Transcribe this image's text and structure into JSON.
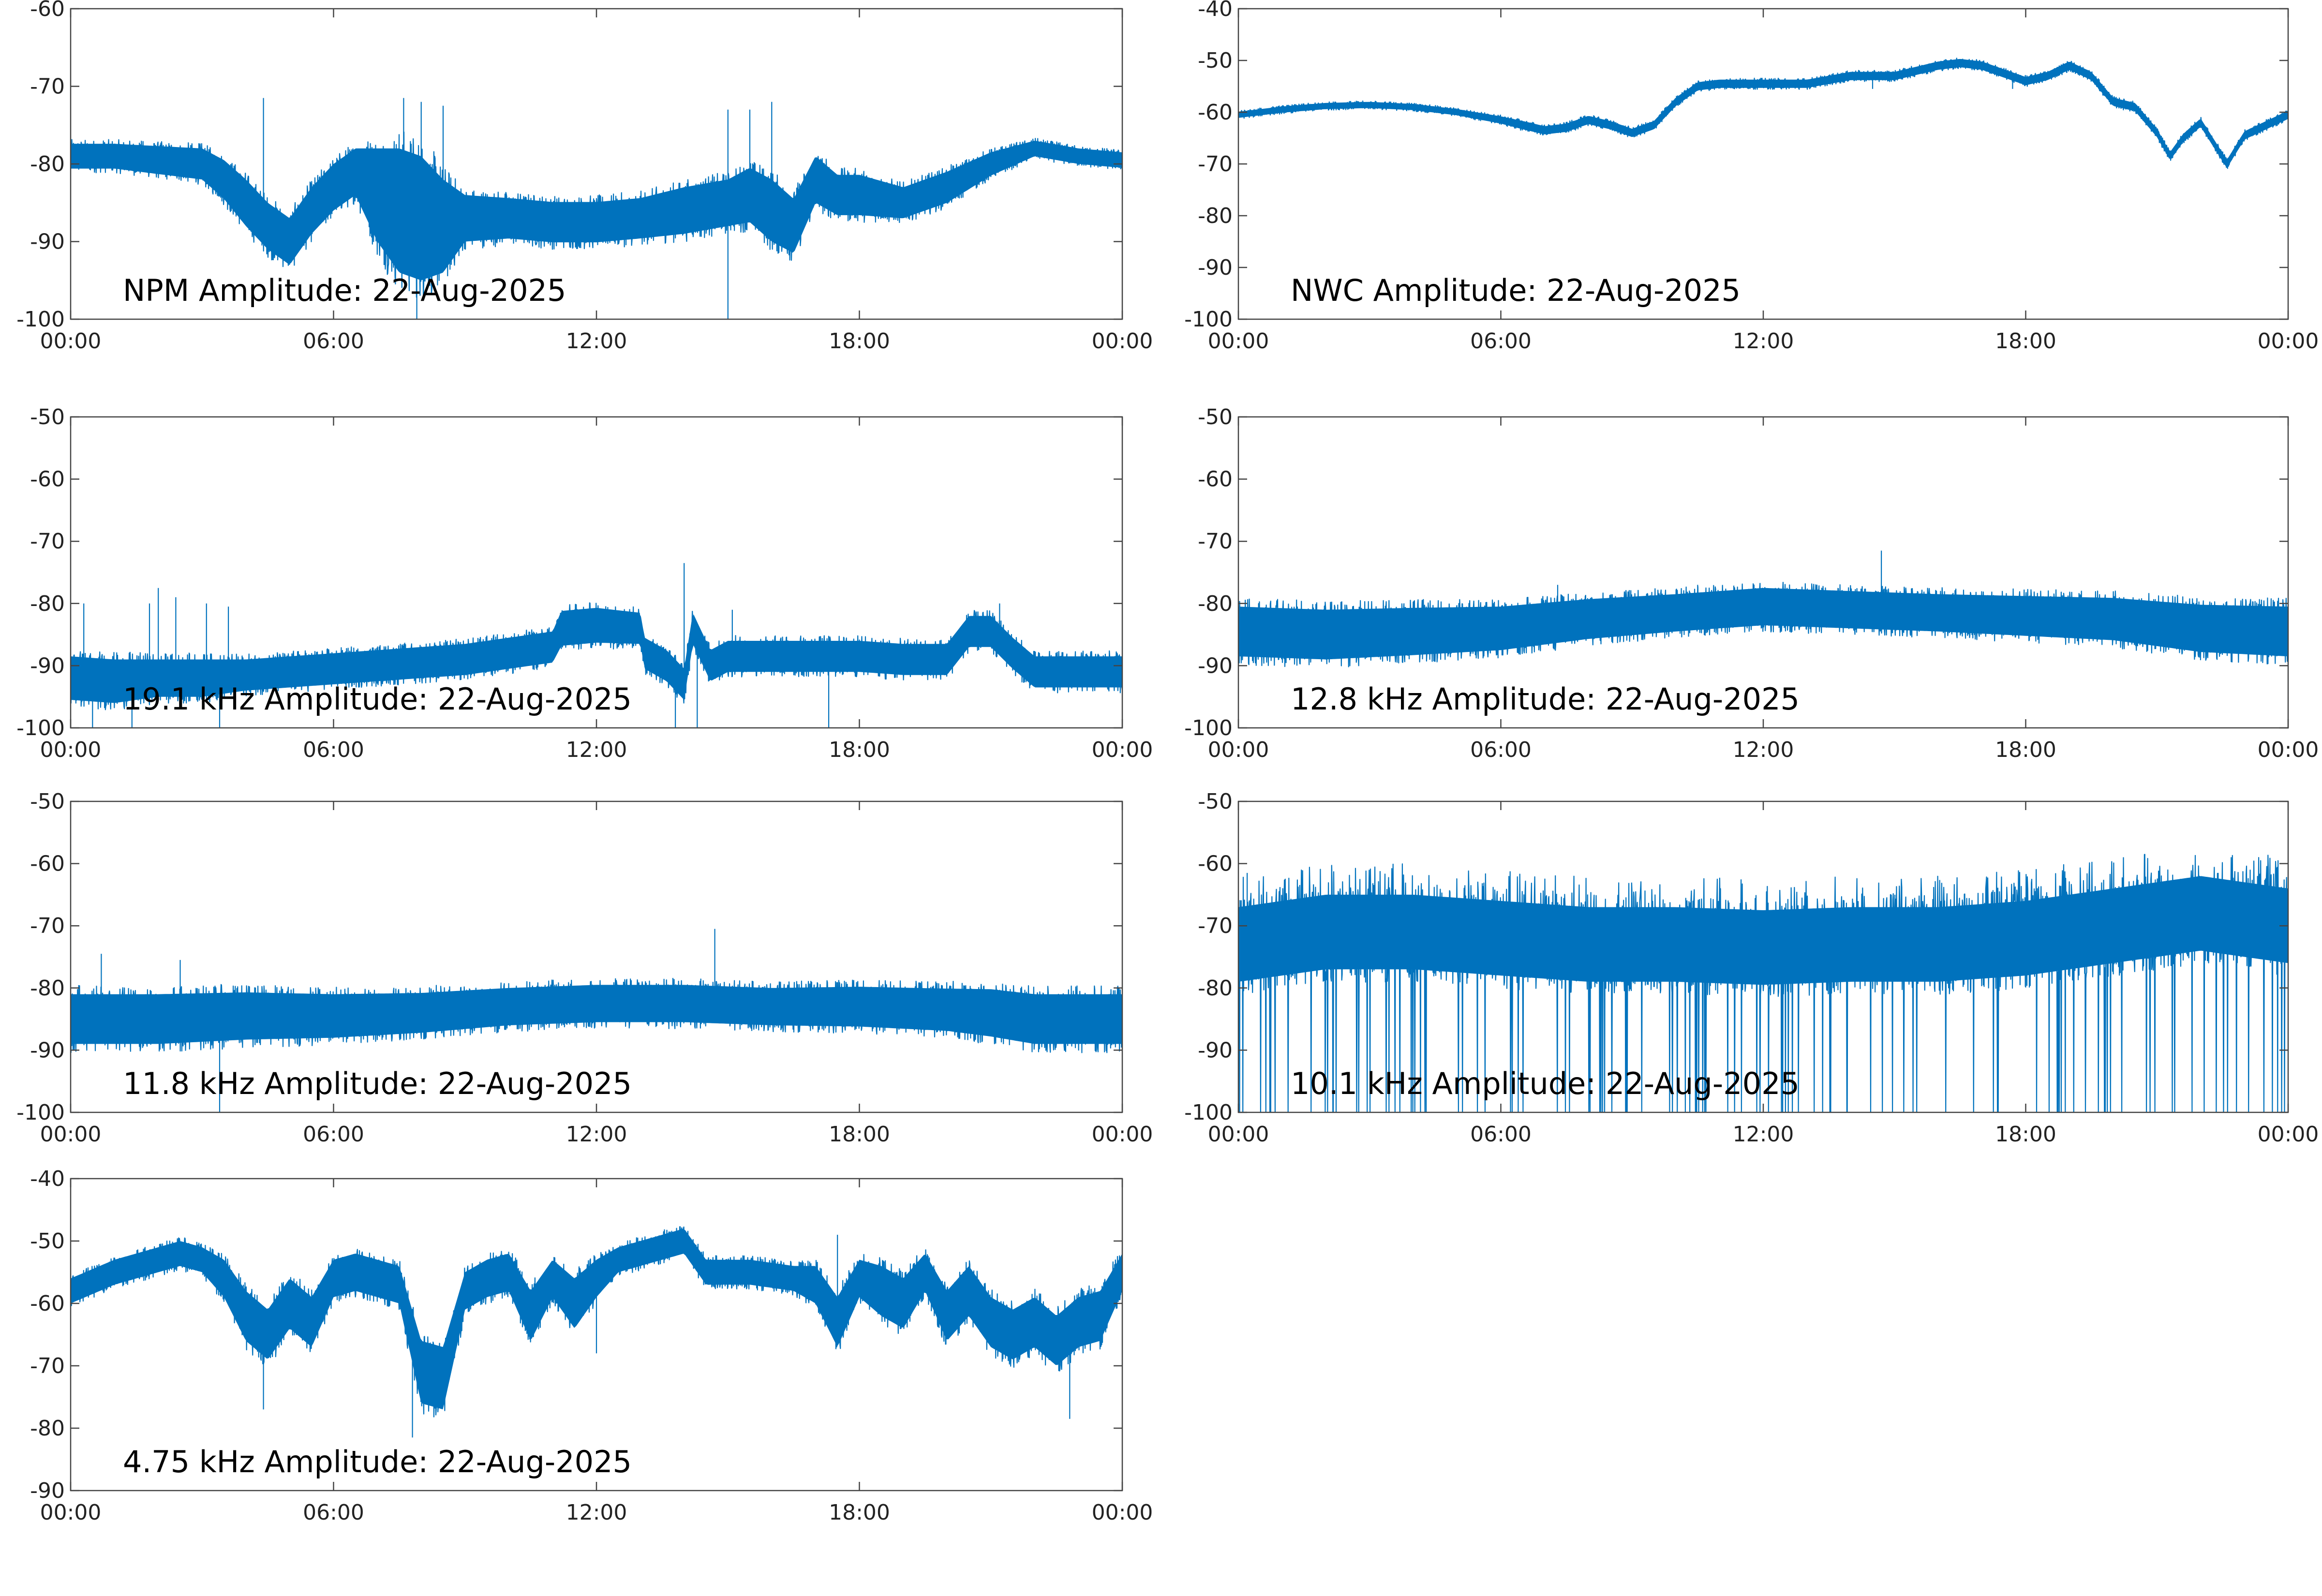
{
  "colors": {
    "trace": "#0072BD",
    "axes": "#444444",
    "background": "#ffffff"
  },
  "x_tick_labels": [
    "00:00",
    "06:00",
    "12:00",
    "18:00",
    "00:00"
  ],
  "chart_data": [
    {
      "type": "line",
      "label": "NPM Amplitude: 22-Aug-2025",
      "x_range_hours": [
        0,
        24
      ],
      "ylim": [
        -100,
        -60
      ],
      "y_ticks": [
        -60,
        -70,
        -80,
        -90,
        -100
      ],
      "grid": false,
      "series": [
        {
          "x": [
            0,
            1,
            2,
            3,
            3.5,
            4,
            4.5,
            5,
            5.5,
            6,
            6.5,
            7,
            7.5,
            8,
            8.5,
            9,
            10,
            11,
            12,
            13,
            14,
            15,
            15.5,
            16,
            16.5,
            17,
            17.5,
            18,
            19,
            20,
            21,
            22,
            23,
            24
          ],
          "mid": [
            -79,
            -79,
            -79.5,
            -80,
            -82,
            -85,
            -88,
            -90,
            -86,
            -83,
            -81,
            -84,
            -86,
            -87,
            -88,
            -87,
            -87,
            -87.5,
            -87.5,
            -87,
            -86,
            -85,
            -84,
            -86,
            -88,
            -82,
            -84,
            -84,
            -85,
            -83,
            -80,
            -78,
            -79,
            -79.5
          ],
          "spread": [
            1.6,
            1.6,
            1.8,
            2.0,
            2.5,
            3.0,
            3.0,
            3.0,
            3.0,
            3.0,
            3.0,
            6.0,
            8.0,
            8.0,
            6.0,
            3.0,
            2.6,
            2.6,
            2.6,
            2.6,
            3.0,
            3.0,
            3.5,
            4.0,
            3.5,
            3.0,
            2.6,
            2.6,
            2.0,
            2.0,
            1.5,
            1.0,
            1.0,
            1.0
          ]
        }
      ],
      "spikes": [
        [
          4.4,
          -71.5
        ],
        [
          7.6,
          -71.5
        ],
        [
          8.0,
          -72
        ],
        [
          8.5,
          -72.5
        ],
        [
          15.0,
          -73
        ],
        [
          15.5,
          -73
        ],
        [
          16.0,
          -72
        ],
        [
          15.0,
          -100
        ],
        [
          7.9,
          -100
        ]
      ]
    },
    {
      "type": "line",
      "label": "NWC Amplitude: 22-Aug-2025",
      "x_range_hours": [
        0,
        24
      ],
      "ylim": [
        -100,
        -40
      ],
      "y_ticks": [
        -40,
        -50,
        -60,
        -70,
        -80,
        -90,
        -100
      ],
      "grid": false,
      "series": [
        {
          "x": [
            0,
            1,
            2,
            3,
            4,
            5,
            6,
            6.5,
            7,
            7.5,
            8,
            8.5,
            9,
            9.5,
            10,
            10.5,
            11,
            12,
            13,
            14,
            15,
            16,
            16.5,
            17,
            17.5,
            18,
            18.5,
            19,
            19.5,
            20,
            20.5,
            21,
            21.3,
            21.6,
            22,
            22.3,
            22.6,
            23,
            23.5,
            24
          ],
          "mid": [
            -60.5,
            -59.5,
            -58.8,
            -58.6,
            -59,
            -60,
            -61.5,
            -62.5,
            -63.5,
            -63,
            -61.5,
            -62.5,
            -64,
            -62.5,
            -58,
            -55,
            -54.5,
            -54.5,
            -54.5,
            -53,
            -53,
            -51,
            -50.5,
            -51,
            -52.5,
            -54,
            -53,
            -51,
            -53,
            -58,
            -59,
            -64,
            -68.5,
            -65,
            -62,
            -66,
            -70,
            -64.5,
            -62.5,
            -60.5
          ],
          "spread": [
            0.6,
            0.6,
            0.6,
            0.6,
            0.6,
            0.6,
            0.7,
            0.8,
            0.8,
            0.8,
            0.8,
            0.8,
            0.8,
            0.8,
            0.8,
            0.8,
            0.8,
            0.8,
            0.8,
            0.8,
            0.8,
            0.8,
            0.8,
            0.8,
            0.8,
            0.8,
            0.8,
            0.8,
            0.8,
            0.8,
            0.8,
            0.8,
            0.8,
            0.8,
            0.8,
            0.8,
            0.8,
            0.8,
            0.8,
            0.8
          ]
        }
      ],
      "spikes": [
        [
          14.5,
          -55.5
        ],
        [
          17.7,
          -55.5
        ]
      ]
    },
    {
      "type": "line",
      "label": "19.1 kHz Amplitude: 22-Aug-2025",
      "x_range_hours": [
        0,
        24
      ],
      "ylim": [
        -100,
        -50
      ],
      "y_ticks": [
        -50,
        -60,
        -70,
        -80,
        -90,
        -100
      ],
      "grid": false,
      "series": [
        {
          "x": [
            0,
            1,
            2,
            3,
            4,
            5,
            6,
            7,
            8,
            9,
            10,
            11,
            11.2,
            12,
            13,
            13.1,
            13.6,
            14,
            14.2,
            14.6,
            15,
            16,
            17,
            18,
            19,
            20,
            20.5,
            21,
            21.5,
            22,
            23,
            24
          ],
          "mid": [
            -92,
            -92.5,
            -92,
            -92,
            -91.5,
            -91,
            -90.5,
            -90,
            -89.5,
            -89,
            -88,
            -87,
            -84,
            -83.5,
            -84,
            -88,
            -90,
            -93,
            -84,
            -90,
            -88.5,
            -88.5,
            -88.5,
            -88.5,
            -89,
            -89,
            -84.5,
            -84.5,
            -88,
            -91,
            -91,
            -91
          ],
          "spread": [
            3.5,
            3.5,
            3.0,
            3.0,
            2.5,
            2.5,
            2.5,
            2.5,
            2.5,
            2.5,
            2.5,
            2.5,
            2.8,
            2.8,
            2.5,
            2.5,
            2.5,
            2.5,
            2.5,
            2.5,
            2.5,
            2.5,
            2.5,
            2.5,
            2.5,
            2.5,
            2.5,
            2.5,
            2.5,
            2.5,
            2.5,
            2.5
          ]
        }
      ],
      "spikes": [
        [
          0.3,
          -80
        ],
        [
          1.8,
          -80
        ],
        [
          2.0,
          -77.5
        ],
        [
          2.4,
          -79
        ],
        [
          3.1,
          -80
        ],
        [
          3.6,
          -80.5
        ],
        [
          15.1,
          -81
        ],
        [
          14.0,
          -73.5
        ],
        [
          21.2,
          -80
        ],
        [
          0.5,
          -100
        ],
        [
          1.4,
          -100
        ],
        [
          3.4,
          -100
        ],
        [
          13.8,
          -100
        ],
        [
          14.3,
          -100
        ],
        [
          17.3,
          -100
        ]
      ]
    },
    {
      "type": "line",
      "label": "12.8 kHz Amplitude: 22-Aug-2025",
      "x_range_hours": [
        0,
        24
      ],
      "ylim": [
        -100,
        -50
      ],
      "y_ticks": [
        -50,
        -60,
        -70,
        -80,
        -90,
        -100
      ],
      "grid": false,
      "series": [
        {
          "x": [
            0,
            2,
            4,
            6,
            8,
            10,
            12,
            14,
            16,
            18,
            20,
            22,
            24
          ],
          "mid": [
            -84.5,
            -85,
            -84.5,
            -84,
            -82.5,
            -81.5,
            -80.5,
            -81,
            -81.5,
            -82,
            -82.5,
            -84,
            -84.5
          ],
          "spread": [
            4.0,
            4.0,
            3.8,
            3.5,
            3.2,
            3.0,
            3.0,
            3.0,
            3.0,
            3.2,
            3.4,
            3.8,
            4.0
          ]
        }
      ],
      "spikes": [
        [
          14.7,
          -71.5
        ],
        [
          7.3,
          -77
        ],
        [
          10.5,
          -77
        ]
      ]
    },
    {
      "type": "line",
      "label": "11.8 kHz Amplitude: 22-Aug-2025",
      "x_range_hours": [
        0,
        24
      ],
      "ylim": [
        -100,
        -50
      ],
      "y_ticks": [
        -50,
        -60,
        -70,
        -80,
        -90,
        -100
      ],
      "grid": false,
      "series": [
        {
          "x": [
            0,
            2,
            4,
            6,
            8,
            10,
            12,
            14,
            16,
            18,
            20,
            21,
            22,
            23,
            24
          ],
          "mid": [
            -85,
            -85,
            -84.5,
            -84.5,
            -84,
            -83,
            -82.5,
            -82.5,
            -83,
            -83,
            -83.5,
            -84,
            -85,
            -85,
            -85
          ],
          "spread": [
            4.0,
            4.0,
            3.8,
            3.5,
            3.2,
            3.0,
            3.0,
            3.0,
            3.0,
            3.2,
            3.4,
            3.8,
            4.0,
            4.0,
            4.0
          ]
        }
      ],
      "spikes": [
        [
          14.7,
          -70.5
        ],
        [
          2.5,
          -75.5
        ],
        [
          3.4,
          -100
        ],
        [
          0.7,
          -74.5
        ]
      ]
    },
    {
      "type": "line",
      "label": "10.1 kHz Amplitude: 22-Aug-2025",
      "x_range_hours": [
        0,
        24
      ],
      "ylim": [
        -100,
        -50
      ],
      "y_ticks": [
        -50,
        -60,
        -70,
        -80,
        -90,
        -100
      ],
      "grid": false,
      "series": [
        {
          "x": [
            0,
            2,
            4,
            6,
            8,
            10,
            12,
            14,
            16,
            18,
            20,
            22,
            24
          ],
          "mid": [
            -73,
            -71,
            -71,
            -72,
            -73,
            -73,
            -73.5,
            -73,
            -73,
            -72,
            -70,
            -68,
            -70
          ],
          "spread": [
            6,
            6,
            6,
            6,
            6,
            6,
            6,
            6,
            6,
            6,
            6,
            6,
            6
          ]
        }
      ],
      "dropouts_to": -100,
      "spikes": [
        [
          0.2,
          -61.5
        ],
        [
          22.4,
          -61.5
        ],
        [
          23.3,
          -62
        ]
      ]
    },
    {
      "type": "line",
      "label": "4.75 kHz Amplitude: 22-Aug-2025",
      "x_range_hours": [
        0,
        24
      ],
      "ylim": [
        -90,
        -40
      ],
      "y_ticks": [
        -40,
        -50,
        -60,
        -70,
        -80,
        -90
      ],
      "grid": false,
      "series": [
        {
          "x": [
            0,
            0.5,
            1,
            1.5,
            2,
            2.5,
            3,
            3.5,
            4,
            4.5,
            5,
            5.5,
            6,
            6.5,
            7,
            7.5,
            8,
            8.5,
            9,
            9.5,
            10,
            10.5,
            11,
            11.5,
            12,
            12.5,
            13,
            13.5,
            14,
            14.5,
            15,
            15.5,
            16,
            16.5,
            17,
            17.5,
            18,
            18.5,
            19,
            19.5,
            20,
            20.5,
            21,
            21.5,
            22,
            22.5,
            23,
            23.5,
            24
          ],
          "mid": [
            -58,
            -56.5,
            -55,
            -54,
            -53,
            -52,
            -53,
            -56,
            -62,
            -65,
            -60,
            -63,
            -56,
            -55,
            -56,
            -57,
            -71,
            -72,
            -58,
            -56,
            -55,
            -62,
            -56,
            -60,
            -56,
            -53,
            -52,
            -51,
            -50,
            -55,
            -55,
            -55,
            -55.5,
            -56,
            -57,
            -63,
            -56,
            -58,
            -60,
            -55,
            -62,
            -58,
            -63,
            -65,
            -63,
            -66,
            -63,
            -62,
            -55
          ],
          "spread": [
            2,
            2,
            2,
            2,
            2,
            2,
            2,
            3,
            4,
            4,
            4,
            4,
            3,
            3,
            3,
            3,
            5,
            5,
            3,
            3,
            3,
            4,
            3,
            4,
            3,
            2,
            2,
            2,
            2,
            2,
            2,
            2,
            2,
            2,
            3,
            4,
            3,
            4,
            4,
            3,
            4,
            4,
            4,
            4,
            4,
            4,
            4,
            4,
            3
          ]
        }
      ],
      "spikes": [
        [
          7.8,
          -81.5
        ],
        [
          4.4,
          -77
        ],
        [
          12.0,
          -68
        ],
        [
          22.8,
          -78.5
        ],
        [
          17.5,
          -49
        ],
        [
          24.0,
          -51
        ]
      ]
    }
  ]
}
